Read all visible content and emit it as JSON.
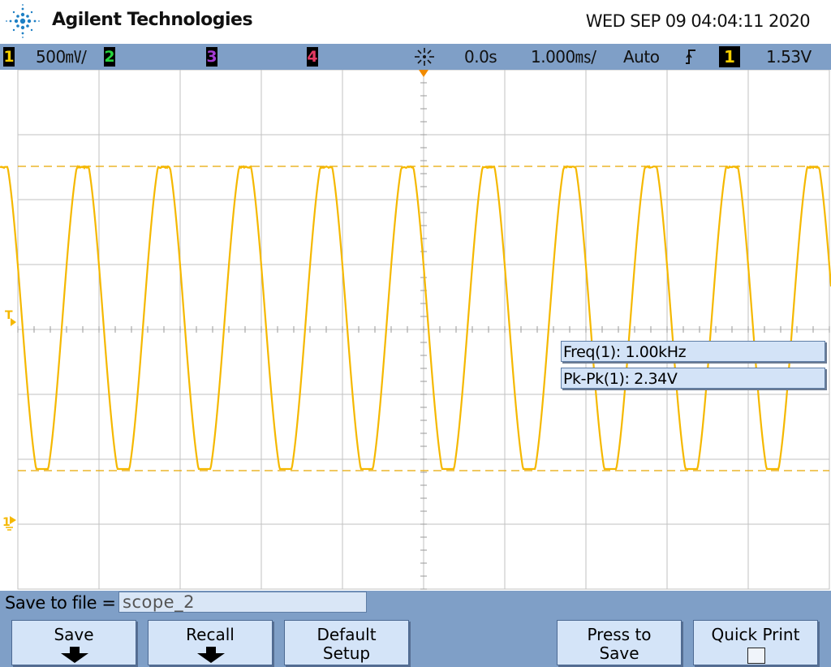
{
  "header": {
    "brand": "Agilent Technologies",
    "datetime": "WED SEP 09 04:04:11 2020"
  },
  "statusbar": {
    "channels": [
      {
        "num": "1",
        "color": "#f5ce00",
        "scale": "500㎷/"
      },
      {
        "num": "2",
        "color": "#25d33d"
      },
      {
        "num": "3",
        "color": "#a53cd4"
      },
      {
        "num": "4",
        "color": "#e53a63"
      }
    ],
    "run_icon": "run-indicator-icon",
    "delay": "0.0s",
    "timebase": "1.000㎳/",
    "trigger_mode": "Auto",
    "trigger_slope_icon": "rising-edge-icon",
    "trigger_source": "1",
    "trigger_level": "1.53V"
  },
  "display": {
    "trace_color": "#f5b800",
    "grid_color": "#c2c2c2",
    "trigger_marker": "T",
    "ground_marker": "1",
    "waveform": {
      "frequency_hz": 1000,
      "peak_to_peak_v": 2.34,
      "cycles_visible": 10
    }
  },
  "measurements": [
    {
      "label": "Freq(1): 1.00kHz"
    },
    {
      "label": "Pk-Pk(1): 2.34V"
    }
  ],
  "save": {
    "label": "Save to file =",
    "filename": "scope_2"
  },
  "softkeys": [
    {
      "line1": "Save",
      "line2": "",
      "icon": "down-arrow-icon"
    },
    {
      "line1": "Recall",
      "line2": "",
      "icon": "down-arrow-icon"
    },
    {
      "line1": "Default",
      "line2": "Setup"
    },
    {
      "line1": "Press to",
      "line2": "Save"
    },
    {
      "line1": "Quick Print",
      "line2": "",
      "icon": "checkbox-icon"
    }
  ]
}
